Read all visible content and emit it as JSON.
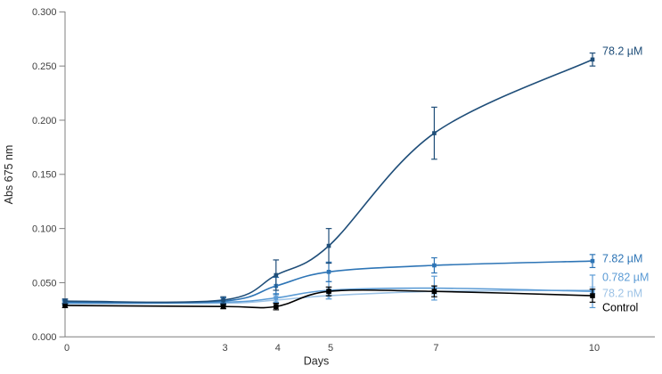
{
  "figure": {
    "background": "#ffffff",
    "axis_color": "#7f7f7f",
    "tick_label_color": "#3f3f3f",
    "axis_title_color": "#262626"
  },
  "chart_data": {
    "type": "line",
    "title": "",
    "xlabel": "Days",
    "ylabel": "Abs 675 nm",
    "x": [
      0,
      3,
      4,
      5,
      7,
      10
    ],
    "xtick_labels": [
      "0",
      "3",
      "4",
      "5",
      "7",
      "10"
    ],
    "ylim": [
      0,
      0.3
    ],
    "ytick_step": 0.05,
    "ytick_labels": [
      "0.000",
      "0.050",
      "0.100",
      "0.150",
      "0.200",
      "0.250",
      "0.300"
    ],
    "grid": false,
    "legend_position": "end-of-line labels at right of curves",
    "marker": "filled-square",
    "error_bars": true,
    "smooth_lines": true,
    "series": [
      {
        "name": "78.2 µM",
        "color": "#1F4E79",
        "values": [
          0.033,
          0.034,
          0.057,
          0.084,
          0.188,
          0.256
        ],
        "errors": [
          0.002,
          0.003,
          0.014,
          0.016,
          0.024,
          0.006
        ],
        "label_value": 0.264
      },
      {
        "name": "7.82 µM",
        "color": "#2E75B6",
        "values": [
          0.032,
          0.033,
          0.047,
          0.06,
          0.066,
          0.07
        ],
        "errors": [
          0.002,
          0.003,
          0.008,
          0.009,
          0.007,
          0.006
        ],
        "label_value": 0.0725
      },
      {
        "name": "0.782 µM",
        "color": "#5B9BD5",
        "values": [
          0.031,
          0.032,
          0.036,
          0.043,
          0.045,
          0.042
        ],
        "errors": [
          0.002,
          0.002,
          0.004,
          0.008,
          0.011,
          0.015
        ],
        "label_value": 0.0553
      },
      {
        "name": "78.2 nM",
        "color": "#9DC3E6",
        "values": [
          0.031,
          0.031,
          0.034,
          0.038,
          0.042,
          0.043
        ],
        "errors": [
          0.001,
          0.002,
          0.003,
          0.003,
          0.003,
          0.003
        ],
        "label_value": 0.0405
      },
      {
        "name": "Control",
        "color": "#000000",
        "values": [
          0.029,
          0.028,
          0.028,
          0.042,
          0.042,
          0.038
        ],
        "errors": [
          0.002,
          0.002,
          0.003,
          0.004,
          0.005,
          0.006
        ],
        "label_value": 0.0272
      }
    ]
  }
}
